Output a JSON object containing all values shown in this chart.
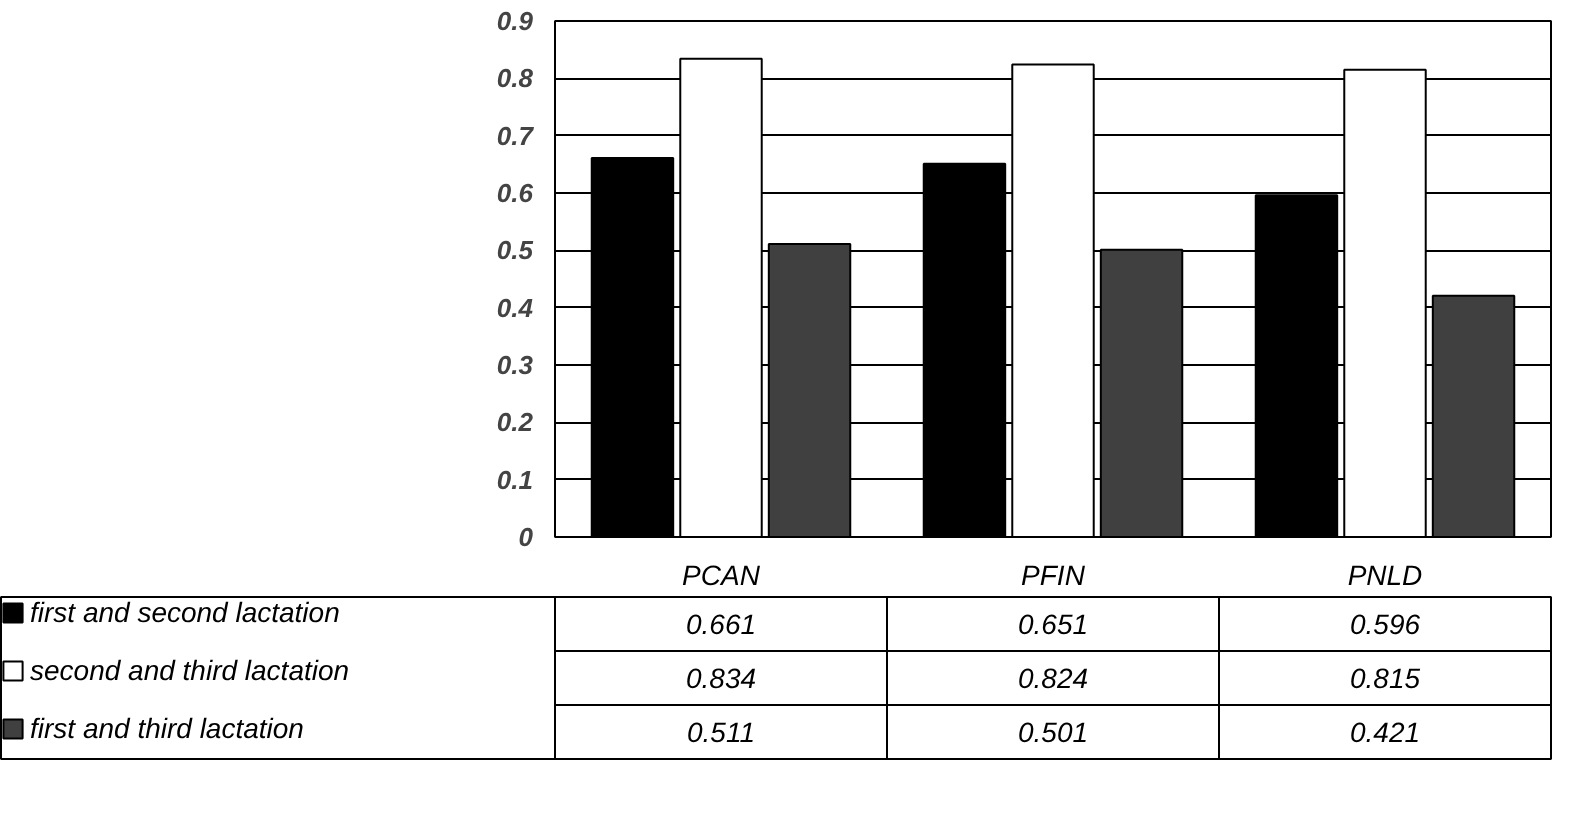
{
  "chart_data": {
    "type": "bar",
    "categories": [
      "PCAN",
      "PFIN",
      "PNLD"
    ],
    "series": [
      {
        "name": "first and second lactation",
        "color": "#000000",
        "values": [
          0.661,
          0.651,
          0.596
        ]
      },
      {
        "name": "second and third lactation",
        "color": "#ffffff",
        "values": [
          0.834,
          0.824,
          0.815
        ]
      },
      {
        "name": "first and third lactation",
        "color": "#404040",
        "values": [
          0.511,
          0.501,
          0.421
        ]
      }
    ],
    "ylim": [
      0,
      0.9
    ],
    "yticks": [
      0,
      0.1,
      0.2,
      0.3,
      0.4,
      0.5,
      0.6,
      0.7,
      0.8,
      0.9
    ],
    "grid": "y",
    "data_labels": true,
    "legend": "bottom"
  }
}
